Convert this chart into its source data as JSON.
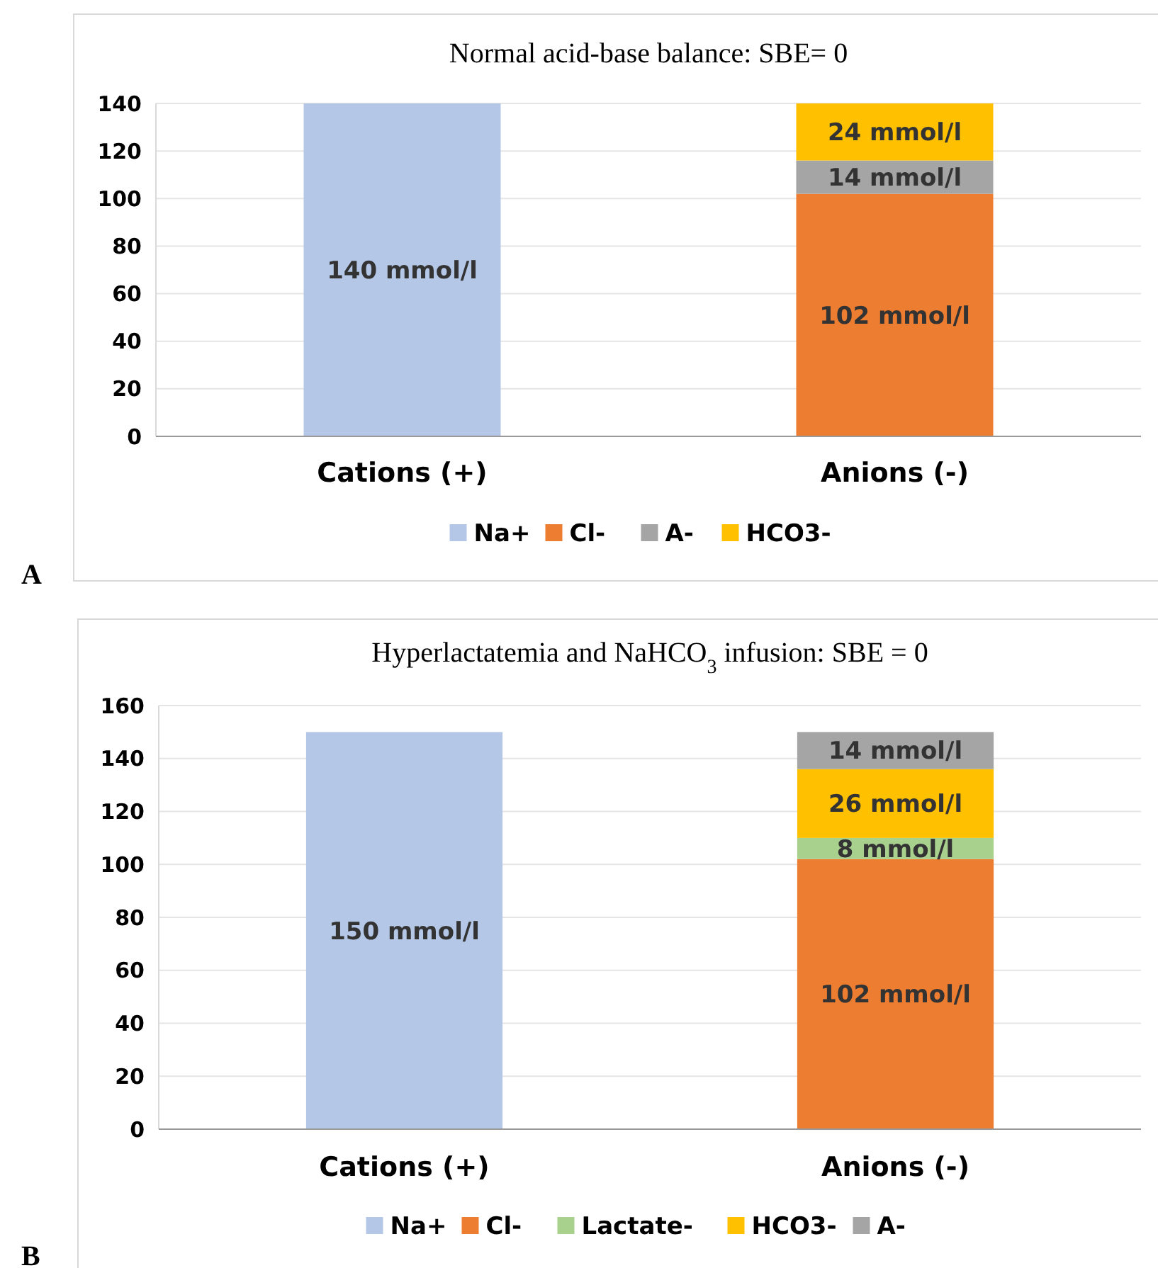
{
  "chart_data": [
    {
      "type": "bar",
      "title": "Normal acid-base balance: SBE= 0",
      "categories": [
        "Cations (+)",
        "Anions (-)"
      ],
      "stacked": true,
      "ylim": [
        0,
        140
      ],
      "yticks": [
        0,
        20,
        40,
        60,
        80,
        100,
        120,
        140
      ],
      "grid": "y",
      "legend": "bottom",
      "annotations": [
        "A"
      ],
      "series": [
        {
          "name": "Na+",
          "color": "#b4c7e7",
          "values": [
            140,
            null
          ],
          "value_labels": [
            "140 mmol/l",
            null
          ]
        },
        {
          "name": "Cl-",
          "color": "#ed7d31",
          "values": [
            null,
            102
          ],
          "value_labels": [
            null,
            "102 mmol/l"
          ]
        },
        {
          "name": "A-",
          "color": "#a5a5a5",
          "values": [
            null,
            14
          ],
          "value_labels": [
            null,
            "14 mmol/l"
          ]
        },
        {
          "name": "HCO3-",
          "color": "#ffc000",
          "values": [
            null,
            24
          ],
          "value_labels": [
            null,
            "24 mmol/l"
          ]
        }
      ]
    },
    {
      "type": "bar",
      "title": "Hyperlactatemia and NaHCO$_{3}$ infusion: SBE = 0",
      "categories": [
        "Cations (+)",
        "Anions (-)"
      ],
      "stacked": true,
      "ylim": [
        0,
        160
      ],
      "yticks": [
        0,
        20,
        40,
        60,
        80,
        100,
        120,
        140,
        160
      ],
      "grid": "y",
      "legend": "bottom",
      "annotations": [
        "B"
      ],
      "series": [
        {
          "name": "Na+",
          "color": "#b4c7e7",
          "values": [
            150,
            null
          ],
          "value_labels": [
            "150 mmol/l",
            null
          ]
        },
        {
          "name": "Cl-",
          "color": "#ed7d31",
          "values": [
            null,
            102
          ],
          "value_labels": [
            null,
            "102 mmol/l"
          ]
        },
        {
          "name": "Lactate-",
          "color": "#a9d18e",
          "values": [
            null,
            8
          ],
          "value_labels": [
            null,
            "8 mmol/l"
          ]
        },
        {
          "name": "HCO3-",
          "color": "#ffc000",
          "values": [
            null,
            26
          ],
          "value_labels": [
            null,
            "26 mmol/l"
          ]
        },
        {
          "name": "A-",
          "color": "#a5a5a5",
          "values": [
            null,
            14
          ],
          "value_labels": [
            null,
            "14 mmol/l"
          ]
        }
      ]
    }
  ]
}
